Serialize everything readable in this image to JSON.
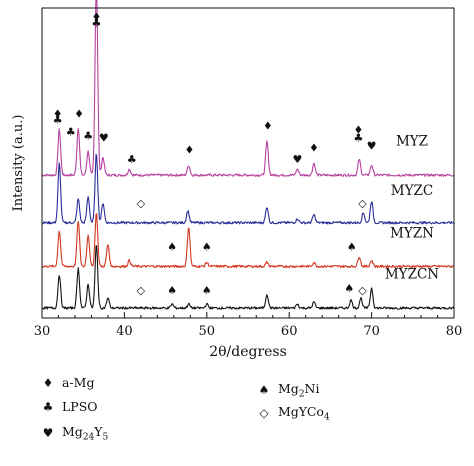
{
  "chart_data": {
    "type": "line",
    "xlabel": "2θ/degress",
    "ylabel": "Intensity (a.u.)",
    "xlim": [
      30,
      80
    ],
    "xticks": [
      30,
      40,
      50,
      60,
      70,
      80
    ],
    "grid": false,
    "series": [
      {
        "name": "MYZ",
        "color": "#b5419f",
        "baseline": 0.69,
        "peaks": [
          [
            32.1,
            0.23
          ],
          [
            34.4,
            0.24
          ],
          [
            35.6,
            0.12
          ],
          [
            36.6,
            0.98
          ],
          [
            37.4,
            0.09
          ],
          [
            40.6,
            0.03
          ],
          [
            47.8,
            0.05
          ],
          [
            57.3,
            0.17
          ],
          [
            61.0,
            0.03
          ],
          [
            63.0,
            0.06
          ],
          [
            68.5,
            0.08
          ],
          [
            70.0,
            0.05
          ]
        ]
      },
      {
        "name": "MYZC",
        "color": "#2a2d9a",
        "baseline": 0.45,
        "peaks": [
          [
            32.1,
            0.3
          ],
          [
            34.4,
            0.12
          ],
          [
            35.6,
            0.13
          ],
          [
            36.6,
            0.35
          ],
          [
            37.4,
            0.1
          ],
          [
            47.7,
            0.06
          ],
          [
            57.3,
            0.08
          ],
          [
            61.0,
            0.02
          ],
          [
            63.0,
            0.04
          ],
          [
            69.0,
            0.05
          ],
          [
            70.0,
            0.11
          ]
        ]
      },
      {
        "name": "MYZN",
        "color": "#d3361f",
        "baseline": 0.23,
        "peaks": [
          [
            32.1,
            0.18
          ],
          [
            34.4,
            0.23
          ],
          [
            35.6,
            0.16
          ],
          [
            36.6,
            0.27
          ],
          [
            38.0,
            0.11
          ],
          [
            40.6,
            0.03
          ],
          [
            47.8,
            0.2
          ],
          [
            50.0,
            0.02
          ],
          [
            57.3,
            0.02
          ],
          [
            63.0,
            0.02
          ],
          [
            68.5,
            0.05
          ],
          [
            70.0,
            0.03
          ]
        ]
      },
      {
        "name": "MYZCN",
        "color": "#111111",
        "baseline": 0.02,
        "peaks": [
          [
            32.1,
            0.17
          ],
          [
            34.4,
            0.2
          ],
          [
            35.6,
            0.12
          ],
          [
            36.6,
            0.32
          ],
          [
            38.0,
            0.05
          ],
          [
            45.8,
            0.02
          ],
          [
            47.8,
            0.02
          ],
          [
            50.0,
            0.02
          ],
          [
            57.3,
            0.07
          ],
          [
            61.0,
            0.02
          ],
          [
            63.0,
            0.03
          ],
          [
            67.5,
            0.04
          ],
          [
            68.7,
            0.05
          ],
          [
            70.0,
            0.1
          ]
        ]
      }
    ],
    "annotations": [
      {
        "phase": "a-Mg",
        "x": 31.9,
        "level": 0.98
      },
      {
        "phase": "LPSO",
        "x": 31.9,
        "level": 0.95
      },
      {
        "phase": "a-Mg",
        "x": 34.5,
        "level": 0.98
      },
      {
        "phase": "LPSO",
        "x": 33.5,
        "level": 0.89
      },
      {
        "phase": "LPSO",
        "x": 35.6,
        "level": 0.87
      },
      {
        "phase": "a-Mg",
        "x": 36.6,
        "level": 1.47
      },
      {
        "phase": "LPSO",
        "x": 36.6,
        "level": 1.44
      },
      {
        "phase": "Mg24Y5",
        "x": 37.5,
        "level": 0.86
      },
      {
        "phase": "LPSO",
        "x": 40.9,
        "level": 0.75
      },
      {
        "phase": "a-Mg",
        "x": 47.9,
        "level": 0.8
      },
      {
        "phase": "a-Mg",
        "x": 57.4,
        "level": 0.92
      },
      {
        "phase": "Mg24Y5",
        "x": 61.0,
        "level": 0.75
      },
      {
        "phase": "a-Mg",
        "x": 63.0,
        "level": 0.81
      },
      {
        "phase": "a-Mg",
        "x": 68.4,
        "level": 0.9
      },
      {
        "phase": "LPSO",
        "x": 68.4,
        "level": 0.86
      },
      {
        "phase": "Mg24Y5",
        "x": 70.0,
        "level": 0.82
      },
      {
        "phase": "MgYCo4",
        "x": 42.0,
        "level": 0.53
      },
      {
        "phase": "MgYCo4",
        "x": 68.9,
        "level": 0.53
      },
      {
        "phase": "Mg2Ni",
        "x": 45.8,
        "level": 0.31
      },
      {
        "phase": "Mg2Ni",
        "x": 50.0,
        "level": 0.31
      },
      {
        "phase": "Mg2Ni",
        "x": 67.6,
        "level": 0.31
      },
      {
        "phase": "MgYCo4",
        "x": 42.0,
        "level": 0.09
      },
      {
        "phase": "Mg2Ni",
        "x": 45.8,
        "level": 0.09
      },
      {
        "phase": "Mg2Ni",
        "x": 50.0,
        "level": 0.09
      },
      {
        "phase": "Mg2Ni",
        "x": 67.3,
        "level": 0.1
      },
      {
        "phase": "MgYCo4",
        "x": 68.9,
        "level": 0.09
      }
    ],
    "legend": [
      {
        "phase": "a-Mg",
        "symbol": "♦",
        "label": "a-Mg"
      },
      {
        "phase": "LPSO",
        "symbol": "♣",
        "label": "LPSO"
      },
      {
        "phase": "Mg24Y5",
        "symbol": "♥",
        "label_base": "Mg",
        "sub1": "24",
        "mid": "Y",
        "sub2": "5"
      },
      {
        "phase": "Mg2Ni",
        "symbol": "♠",
        "label_base": "Mg",
        "sub1": "2",
        "mid": "Ni"
      },
      {
        "phase": "MgYCo4",
        "symbol": "◇",
        "label_base": "MgYCo",
        "sub1": "4"
      }
    ]
  }
}
